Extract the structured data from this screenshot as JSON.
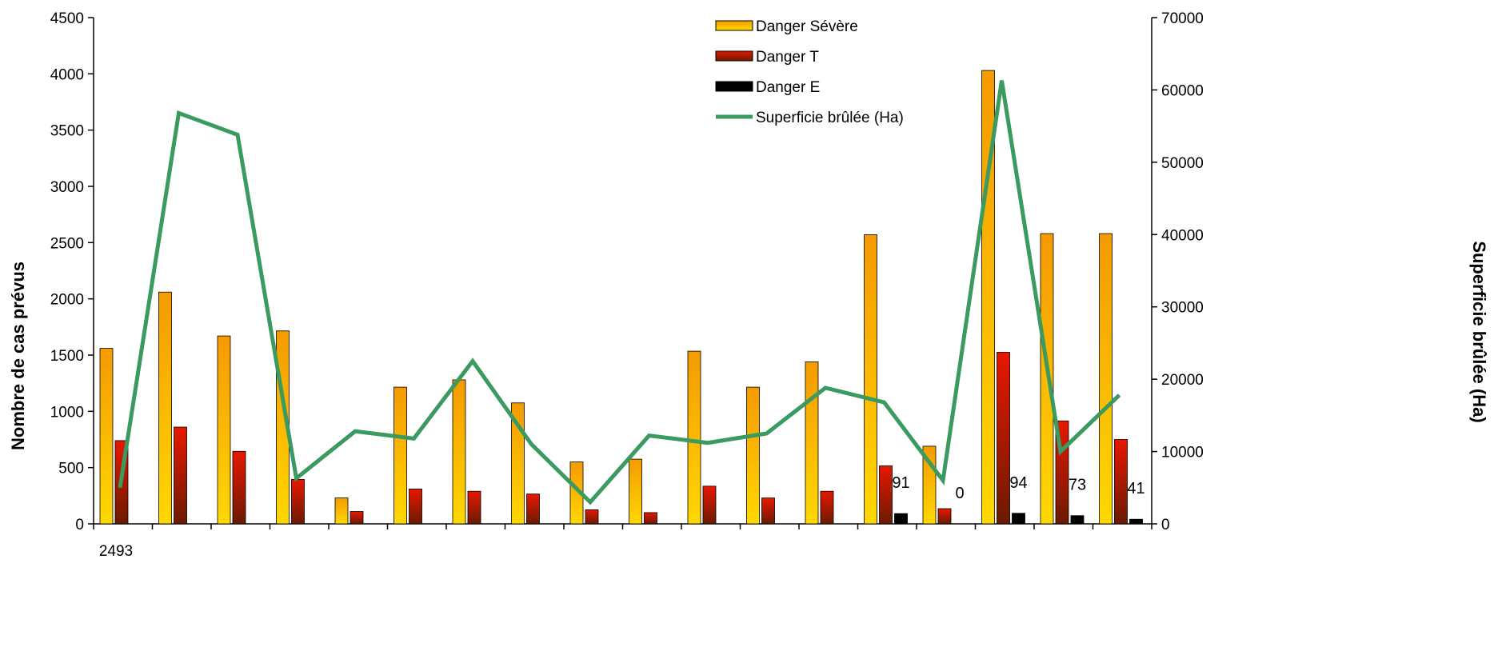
{
  "chart_data": {
    "type": "bar",
    "title": "",
    "xlabel": "",
    "ylabel": "Nombre de cas prévus",
    "y2label": "Superficie brûlée (Ha)",
    "ylim": [
      0,
      4500
    ],
    "y2lim": [
      0,
      70000
    ],
    "yticks": [
      "0",
      "500",
      "1000",
      "1500",
      "2000",
      "2500",
      "3000",
      "3500",
      "4000",
      "4500"
    ],
    "y2ticks": [
      "0",
      "10000",
      "20000",
      "30000",
      "40000",
      "50000",
      "60000",
      "70000"
    ],
    "categories": [
      "2493",
      "",
      "",
      "",
      "",
      "",
      "",
      "",
      "",
      "",
      "",
      "",
      "",
      "",
      "",
      "",
      "",
      ""
    ],
    "series": [
      {
        "name": "Danger Sévère",
        "kind": "bar",
        "color": "#F5A300",
        "values": [
          1560,
          2060,
          1670,
          1715,
          230,
          1215,
          1280,
          1075,
          550,
          575,
          1535,
          1215,
          1440,
          2570,
          690,
          4030,
          2580,
          2580
        ]
      },
      {
        "name": "Danger T",
        "kind": "bar",
        "color": "#D81E00",
        "values": [
          740,
          860,
          645,
          395,
          110,
          310,
          290,
          265,
          125,
          100,
          335,
          230,
          290,
          515,
          135,
          1525,
          915,
          750
        ]
      },
      {
        "name": "Danger E",
        "kind": "bar",
        "color": "#000000",
        "values": [
          0,
          0,
          0,
          0,
          0,
          0,
          0,
          0,
          0,
          0,
          0,
          0,
          0,
          91,
          0,
          94,
          73,
          41
        ]
      },
      {
        "name": "Superficie brûlée (Ha)",
        "kind": "line",
        "axis": "right",
        "color": "#3A9A60",
        "values": [
          5000,
          56800,
          53800,
          6300,
          12800,
          11800,
          22500,
          11000,
          3000,
          12200,
          11200,
          12500,
          18800,
          16800,
          6000,
          61300,
          10000,
          17800
        ]
      }
    ],
    "data_labels": [
      {
        "series": 2,
        "index": 13,
        "text": "91"
      },
      {
        "series": 2,
        "index": 14,
        "text": "0"
      },
      {
        "series": 2,
        "index": 15,
        "text": "94"
      },
      {
        "series": 2,
        "index": 16,
        "text": "73"
      },
      {
        "series": 2,
        "index": 17,
        "text": "41"
      }
    ],
    "legend_position": "top-right",
    "grid": false
  }
}
